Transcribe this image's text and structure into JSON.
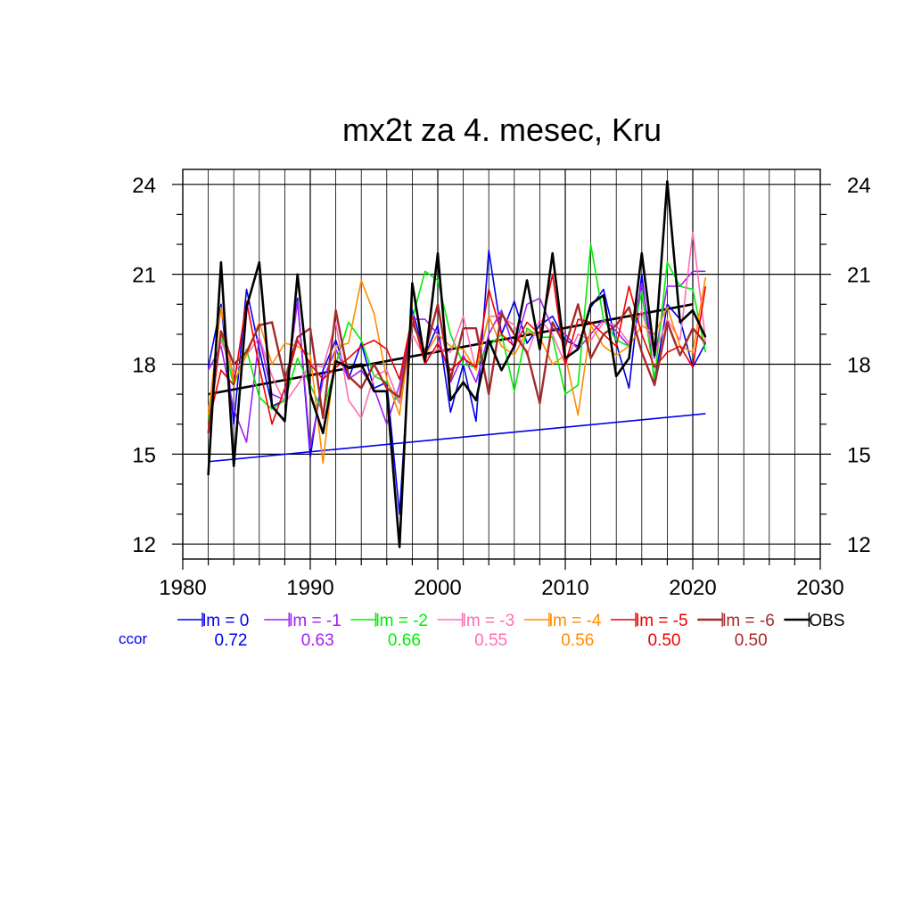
{
  "chart_data": {
    "type": "line",
    "title": "mx2t za 4. mesec, Kru",
    "xlabel": "",
    "ylabel": "",
    "xlim": [
      1980,
      2030
    ],
    "ylim": [
      12,
      24
    ],
    "x_ticks": [
      1980,
      1990,
      2000,
      2010,
      2020,
      2030
    ],
    "x_tick_labels": [
      "1980",
      "1990",
      "2000",
      "2010",
      "2020",
      "2030"
    ],
    "y_ticks": [
      12,
      15,
      18,
      21,
      24
    ],
    "y_tick_labels": [
      "12",
      "15",
      "18",
      "21",
      "24"
    ],
    "grid": true,
    "legend_position": "bottom",
    "ccor_label": "ccor",
    "x": [
      1982,
      1983,
      1984,
      1985,
      1986,
      1987,
      1988,
      1989,
      1990,
      1991,
      1992,
      1993,
      1994,
      1995,
      1996,
      1997,
      1998,
      1999,
      2000,
      2001,
      2002,
      2003,
      2004,
      2005,
      2006,
      2007,
      2008,
      2009,
      2010,
      2011,
      2012,
      2013,
      2014,
      2015,
      2016,
      2017,
      2018,
      2019,
      2020,
      2021
    ],
    "series": [
      {
        "name": "lm = 0",
        "ccor": "0.72",
        "color": "#0000ee",
        "width": 1.6,
        "values": [
          17.9,
          20.0,
          16.0,
          20.5,
          18.5,
          16.6,
          16.8,
          20.2,
          14.9,
          17.8,
          18.8,
          17.5,
          18.7,
          17.2,
          17.4,
          13.0,
          19.8,
          18.3,
          19.3,
          16.4,
          18.0,
          16.1,
          21.8,
          19.0,
          20.1,
          18.7,
          19.3,
          19.6,
          18.8,
          18.6,
          19.9,
          20.5,
          18.7,
          17.2,
          21.0,
          17.4,
          20.0,
          19.5,
          17.9,
          18.7
        ]
      },
      {
        "name": "lm = -1",
        "ccor": "0.63",
        "color": "#a020f0",
        "width": 1.6,
        "values": [
          17.8,
          18.6,
          16.5,
          15.4,
          18.9,
          17.0,
          16.8,
          20.1,
          15.2,
          17.5,
          18.5,
          17.5,
          17.8,
          17.2,
          16.0,
          17.3,
          19.5,
          19.5,
          19.0,
          17.4,
          18.3,
          17.4,
          19.0,
          19.8,
          18.5,
          20.0,
          20.2,
          19.2,
          19.0,
          18.5,
          19.0,
          19.5,
          19.1,
          18.6,
          20.7,
          18.2,
          20.6,
          20.6,
          21.1,
          21.1
        ]
      },
      {
        "name": "lm = -2",
        "ccor": "0.66",
        "color": "#00ee00",
        "width": 1.6,
        "values": [
          16.1,
          19.0,
          17.3,
          18.5,
          16.9,
          16.5,
          16.8,
          18.2,
          17.3,
          16.4,
          18.0,
          19.4,
          18.8,
          17.6,
          17.4,
          16.7,
          19.5,
          21.1,
          20.8,
          19.0,
          18.0,
          17.9,
          18.6,
          19.0,
          17.1,
          19.2,
          18.9,
          18.9,
          17.0,
          17.3,
          22.0,
          19.5,
          18.8,
          18.6,
          20.4,
          17.5,
          21.4,
          20.6,
          20.5,
          18.4
        ]
      },
      {
        "name": "lm = -3",
        "ccor": "0.55",
        "color": "#ff6eb4",
        "width": 1.6,
        "values": [
          16.5,
          18.8,
          17.7,
          18.3,
          18.9,
          17.6,
          16.7,
          17.3,
          18.0,
          17.9,
          19.4,
          16.8,
          16.2,
          17.6,
          17.8,
          16.7,
          19.0,
          18.2,
          18.5,
          18.4,
          19.6,
          17.8,
          19.6,
          19.6,
          19.3,
          18.3,
          19.5,
          19.0,
          18.0,
          19.0,
          18.8,
          19.4,
          19.3,
          18.7,
          19.8,
          18.3,
          19.5,
          18.8,
          22.4,
          18.8
        ]
      },
      {
        "name": "lm = -4",
        "ccor": "0.56",
        "color": "#ff8c00",
        "width": 1.6,
        "values": [
          16.3,
          19.9,
          17.4,
          18.3,
          19.4,
          18.0,
          18.7,
          18.6,
          18.3,
          14.7,
          18.6,
          18.7,
          20.8,
          19.7,
          17.5,
          16.3,
          19.5,
          18.3,
          19.0,
          18.6,
          18.5,
          17.8,
          19.6,
          18.6,
          18.3,
          19.1,
          18.9,
          18.0,
          18.3,
          16.3,
          19.3,
          18.6,
          18.3,
          18.6,
          19.3,
          19.0,
          19.9,
          18.6,
          18.4,
          20.9
        ]
      },
      {
        "name": "lm = -5",
        "ccor": "0.50",
        "color": "#ee0000",
        "width": 1.6,
        "values": [
          16.0,
          17.8,
          17.3,
          20.1,
          17.9,
          16.0,
          17.2,
          18.8,
          18.0,
          17.5,
          17.9,
          18.2,
          18.6,
          18.8,
          18.5,
          17.5,
          19.6,
          18.0,
          18.7,
          17.8,
          18.2,
          17.9,
          20.5,
          19.0,
          18.6,
          19.4,
          19.0,
          21.0,
          18.0,
          19.5,
          19.4,
          19.0,
          18.6,
          20.6,
          19.0,
          17.9,
          18.4,
          18.6,
          17.9,
          20.6
        ]
      },
      {
        "name": "lm = -6",
        "ccor": "0.50",
        "color": "#a52a2a",
        "width": 2.4,
        "values": [
          15.7,
          19.1,
          18.0,
          18.4,
          19.3,
          19.4,
          17.5,
          18.9,
          19.2,
          16.2,
          19.8,
          17.6,
          17.2,
          18.0,
          17.2,
          16.9,
          19.4,
          18.4,
          20.0,
          17.5,
          19.2,
          19.2,
          17.0,
          19.7,
          19.0,
          18.4,
          16.7,
          19.4,
          18.6,
          20.0,
          18.2,
          19.0,
          19.3,
          19.9,
          18.4,
          17.3,
          19.4,
          18.3,
          19.2,
          18.7
        ]
      },
      {
        "name": "OBS",
        "ccor": "",
        "color": "#000000",
        "width": 2.6,
        "values": [
          14.3,
          21.4,
          14.6,
          19.9,
          21.4,
          16.6,
          16.1,
          21.0,
          17.0,
          15.7,
          18.1,
          17.9,
          18.0,
          17.1,
          17.1,
          11.9,
          20.7,
          18.1,
          21.7,
          16.8,
          17.4,
          16.8,
          18.8,
          17.8,
          18.6,
          20.8,
          18.5,
          21.7,
          18.2,
          18.5,
          20.0,
          20.3,
          17.6,
          18.2,
          21.7,
          18.3,
          24.1,
          19.4,
          19.8,
          18.9
        ]
      }
    ],
    "trend_lines": [
      {
        "name": "OBS trend",
        "color": "#000000",
        "width": 2.6,
        "x": [
          1982,
          2020
        ],
        "values": [
          17.0,
          20.0
        ]
      },
      {
        "name": "lm = 0 trend",
        "color": "#0000ee",
        "width": 1.6,
        "x": [
          1982,
          2021
        ],
        "values": [
          14.75,
          16.35
        ]
      }
    ]
  }
}
